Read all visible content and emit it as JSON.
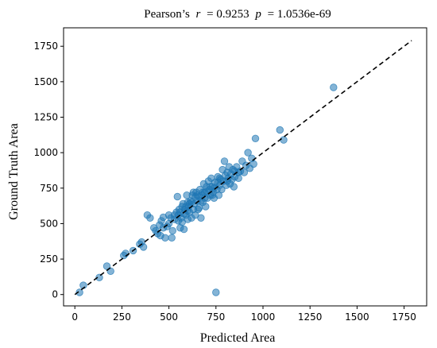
{
  "chart_data": {
    "type": "scatter",
    "title_parts": {
      "prefix": "Pearson’s",
      "r_symbol": "r",
      "r_value": "= 0.9253",
      "p_symbol": "p",
      "p_value": "= 1.0536e-69"
    },
    "xlabel": "Predicted Area",
    "ylabel": "Ground Truth Area",
    "xlim": [
      -60,
      1870
    ],
    "ylim": [
      -80,
      1880
    ],
    "xticks": [
      0,
      250,
      500,
      750,
      1000,
      1250,
      1500,
      1750
    ],
    "yticks": [
      0,
      250,
      500,
      750,
      1000,
      1250,
      1500,
      1750
    ],
    "xtick_labels": [
      "0",
      "250",
      "500",
      "750",
      "1000",
      "1250",
      "1500",
      "1750"
    ],
    "ytick_labels": [
      "0",
      "250",
      "500",
      "750",
      "1000",
      "1250",
      "1500",
      "1750"
    ],
    "grid": false,
    "reference_line": {
      "style": "dashed",
      "color": "#000000",
      "from": [
        0,
        0
      ],
      "to": [
        1790,
        1790
      ]
    },
    "point_color": "#1f77b4",
    "point_alpha": 0.55,
    "points": [
      [
        25,
        15
      ],
      [
        45,
        65
      ],
      [
        130,
        120
      ],
      [
        170,
        200
      ],
      [
        190,
        165
      ],
      [
        260,
        275
      ],
      [
        270,
        290
      ],
      [
        310,
        310
      ],
      [
        345,
        355
      ],
      [
        355,
        370
      ],
      [
        365,
        335
      ],
      [
        385,
        560
      ],
      [
        400,
        540
      ],
      [
        420,
        470
      ],
      [
        430,
        450
      ],
      [
        440,
        430
      ],
      [
        450,
        490
      ],
      [
        455,
        415
      ],
      [
        460,
        520
      ],
      [
        470,
        545
      ],
      [
        480,
        400
      ],
      [
        490,
        480
      ],
      [
        500,
        560
      ],
      [
        510,
        540
      ],
      [
        515,
        400
      ],
      [
        520,
        450
      ],
      [
        530,
        530
      ],
      [
        540,
        580
      ],
      [
        545,
        690
      ],
      [
        550,
        520
      ],
      [
        555,
        600
      ],
      [
        560,
        470
      ],
      [
        565,
        540
      ],
      [
        570,
        510
      ],
      [
        575,
        640
      ],
      [
        580,
        460
      ],
      [
        585,
        600
      ],
      [
        590,
        560
      ],
      [
        595,
        700
      ],
      [
        600,
        530
      ],
      [
        605,
        620
      ],
      [
        610,
        580
      ],
      [
        615,
        660
      ],
      [
        620,
        540
      ],
      [
        625,
        700
      ],
      [
        630,
        600
      ],
      [
        635,
        640
      ],
      [
        640,
        560
      ],
      [
        645,
        720
      ],
      [
        650,
        660
      ],
      [
        655,
        600
      ],
      [
        660,
        690
      ],
      [
        665,
        740
      ],
      [
        670,
        540
      ],
      [
        675,
        700
      ],
      [
        680,
        650
      ],
      [
        685,
        780
      ],
      [
        690,
        720
      ],
      [
        695,
        620
      ],
      [
        700,
        760
      ],
      [
        705,
        680
      ],
      [
        710,
        800
      ],
      [
        715,
        740
      ],
      [
        720,
        700
      ],
      [
        725,
        820
      ],
      [
        730,
        760
      ],
      [
        735,
        720
      ],
      [
        740,
        680
      ],
      [
        745,
        790
      ],
      [
        750,
        15
      ],
      [
        755,
        740
      ],
      [
        760,
        830
      ],
      [
        765,
        700
      ],
      [
        770,
        770
      ],
      [
        775,
        810
      ],
      [
        780,
        740
      ],
      [
        785,
        880
      ],
      [
        790,
        800
      ],
      [
        795,
        940
      ],
      [
        800,
        840
      ],
      [
        805,
        770
      ],
      [
        810,
        860
      ],
      [
        815,
        820
      ],
      [
        820,
        900
      ],
      [
        825,
        780
      ],
      [
        830,
        850
      ],
      [
        835,
        810
      ],
      [
        840,
        880
      ],
      [
        845,
        760
      ],
      [
        850,
        830
      ],
      [
        860,
        900
      ],
      [
        870,
        820
      ],
      [
        880,
        870
      ],
      [
        890,
        940
      ],
      [
        900,
        860
      ],
      [
        910,
        910
      ],
      [
        920,
        1000
      ],
      [
        930,
        890
      ],
      [
        940,
        960
      ],
      [
        950,
        920
      ],
      [
        960,
        1100
      ],
      [
        1090,
        1160
      ],
      [
        1110,
        1090
      ],
      [
        1375,
        1460
      ],
      [
        620,
        650
      ],
      [
        590,
        620
      ],
      [
        560,
        580
      ],
      [
        680,
        720
      ],
      [
        700,
        730
      ],
      [
        720,
        760
      ],
      [
        740,
        750
      ],
      [
        760,
        790
      ],
      [
        650,
        700
      ],
      [
        610,
        640
      ],
      [
        580,
        570
      ],
      [
        530,
        560
      ],
      [
        500,
        500
      ],
      [
        470,
        470
      ],
      [
        660,
        610
      ],
      [
        690,
        680
      ],
      [
        730,
        700
      ],
      [
        770,
        820
      ],
      [
        810,
        800
      ],
      [
        850,
        870
      ],
      [
        870,
        860
      ],
      [
        640,
        690
      ],
      [
        600,
        650
      ],
      [
        570,
        620
      ],
      [
        550,
        560
      ],
      [
        600,
        590
      ],
      [
        630,
        720
      ],
      [
        670,
        660
      ]
    ]
  }
}
